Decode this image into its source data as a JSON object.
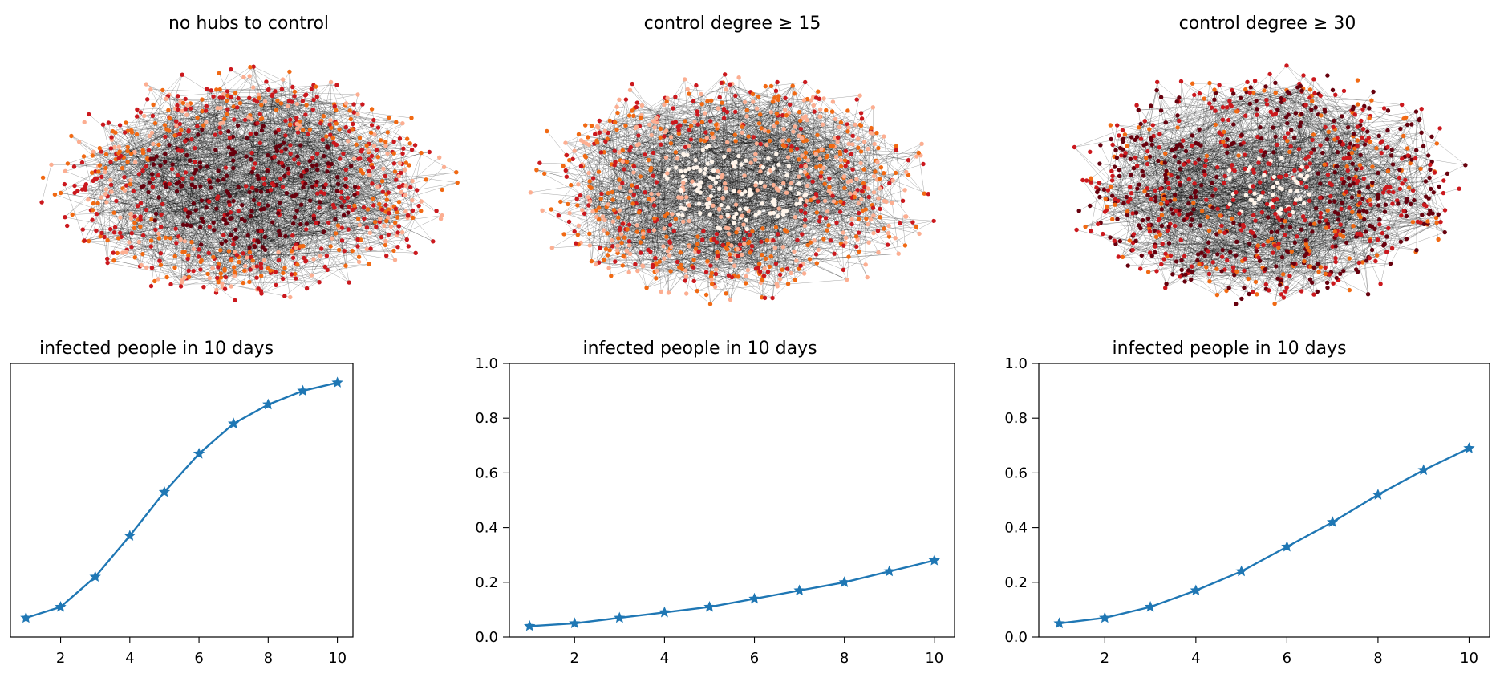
{
  "colors": {
    "background": "#ffffff",
    "series_line": "#1f77b4",
    "edge": "#000000",
    "node_dark_red": "#67000d",
    "node_red": "#cb181d",
    "node_orange": "#f16913",
    "node_peach": "#fcae91",
    "node_light": "#fff5eb"
  },
  "network_titles": [
    "no hubs to control",
    "control degree ≥ 15",
    "control degree ≥ 30"
  ],
  "chart_data": [
    {
      "type": "line",
      "title": "infected people in 10 days",
      "xlabel": "",
      "ylabel": "",
      "x": [
        1,
        2,
        3,
        4,
        5,
        6,
        7,
        8,
        9,
        10
      ],
      "series": [
        {
          "name": "",
          "values": [
            0.07,
            0.11,
            0.22,
            0.37,
            0.53,
            0.67,
            0.78,
            0.85,
            0.9,
            0.93
          ]
        }
      ],
      "xlim": [
        0.55,
        10.45
      ],
      "ylim": [
        0.0,
        1.0
      ],
      "xticks": [
        "2",
        "4",
        "6",
        "8",
        "10"
      ],
      "yticks": [],
      "marker": "star",
      "grid": false
    },
    {
      "type": "line",
      "title": "infected people in 10 days",
      "xlabel": "",
      "ylabel": "",
      "x": [
        1,
        2,
        3,
        4,
        5,
        6,
        7,
        8,
        9,
        10
      ],
      "series": [
        {
          "name": "",
          "values": [
            0.04,
            0.05,
            0.07,
            0.09,
            0.11,
            0.14,
            0.17,
            0.2,
            0.24,
            0.28
          ]
        }
      ],
      "xlim": [
        0.55,
        10.45
      ],
      "ylim": [
        0.0,
        1.0
      ],
      "xticks": [
        "2",
        "4",
        "6",
        "8",
        "10"
      ],
      "yticks": [
        "0.0",
        "0.2",
        "0.4",
        "0.6",
        "0.8",
        "1.0"
      ],
      "marker": "star",
      "grid": false
    },
    {
      "type": "line",
      "title": "infected people in 10 days",
      "xlabel": "",
      "ylabel": "",
      "x": [
        1,
        2,
        3,
        4,
        5,
        6,
        7,
        8,
        9,
        10
      ],
      "series": [
        {
          "name": "",
          "values": [
            0.05,
            0.07,
            0.11,
            0.17,
            0.24,
            0.33,
            0.42,
            0.52,
            0.61,
            0.69
          ]
        }
      ],
      "xlim": [
        0.55,
        10.45
      ],
      "ylim": [
        0.0,
        1.0
      ],
      "xticks": [
        "2",
        "4",
        "6",
        "8",
        "10"
      ],
      "yticks": [
        "0.0",
        "0.2",
        "0.4",
        "0.6",
        "0.8",
        "1.0"
      ],
      "marker": "star",
      "grid": false
    }
  ]
}
